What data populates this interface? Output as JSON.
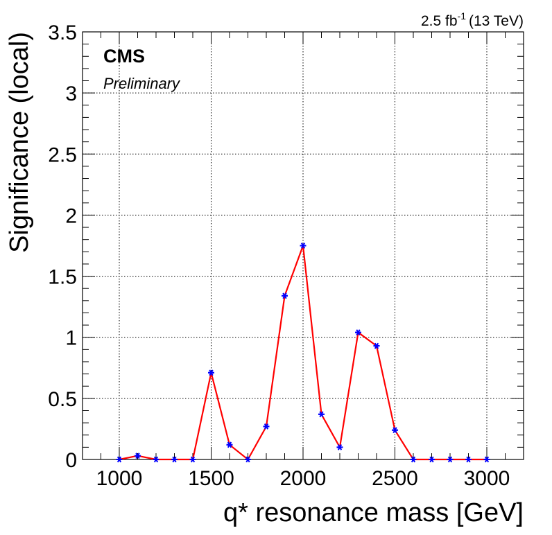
{
  "chart_data": {
    "type": "line",
    "title": "",
    "xlabel": "q* resonance mass [GeV]",
    "ylabel": "Significance (local)",
    "xlim": [
      800,
      3200
    ],
    "ylim": [
      0,
      3.5
    ],
    "xticks": [
      1000,
      1500,
      2000,
      2500,
      3000
    ],
    "xtick_labels": [
      "1000",
      "1500",
      "2000",
      "2500",
      "3000"
    ],
    "yticks": [
      0,
      0.5,
      1,
      1.5,
      2,
      2.5,
      3,
      3.5
    ],
    "ytick_labels": [
      "0",
      "0.5",
      "1",
      "1.5",
      "2",
      "2.5",
      "3",
      "3.5"
    ],
    "grid": true,
    "line_color": "#ff0000",
    "marker_color": "#0000ff",
    "marker": "star",
    "annotations": {
      "experiment": "CMS",
      "status": "Preliminary",
      "lumi_value": "2.5 fb",
      "lumi_exponent": "-1",
      "energy": "(13 TeV)"
    },
    "series": [
      {
        "x": [
          1000,
          1100,
          1200,
          1300,
          1400,
          1500,
          1600,
          1700,
          1800,
          1900,
          2000,
          2100,
          2200,
          2300,
          2400,
          2500,
          2600,
          2700,
          2800,
          2900,
          3000
        ],
        "y": [
          0.0,
          0.03,
          0.0,
          0.0,
          0.0,
          0.71,
          0.12,
          0.0,
          0.27,
          1.34,
          1.75,
          0.37,
          0.1,
          1.04,
          0.93,
          0.24,
          0.0,
          0.0,
          0.0,
          0.0,
          0.0
        ]
      }
    ]
  }
}
